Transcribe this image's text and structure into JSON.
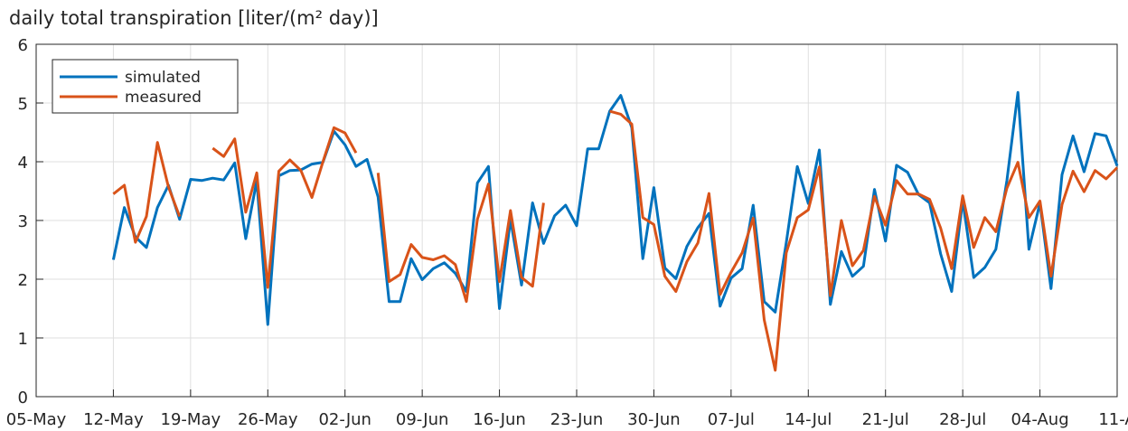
{
  "chart_data": {
    "type": "line",
    "title": "daily total transpiration [liter/(m² day)]",
    "xlabel": "",
    "ylabel": "",
    "ylim": [
      0,
      6
    ],
    "yticks": [
      "0",
      "1",
      "2",
      "3",
      "4",
      "5",
      "6"
    ],
    "xlim": [
      "2019-05-05",
      "2019-08-11"
    ],
    "xticks": [
      {
        "date": "2019-05-05",
        "label": "05-May"
      },
      {
        "date": "2019-05-12",
        "label": "12-May"
      },
      {
        "date": "2019-05-19",
        "label": "19-May"
      },
      {
        "date": "2019-05-26",
        "label": "26-May"
      },
      {
        "date": "2019-06-02",
        "label": "02-Jun"
      },
      {
        "date": "2019-06-09",
        "label": "09-Jun"
      },
      {
        "date": "2019-06-16",
        "label": "16-Jun"
      },
      {
        "date": "2019-06-23",
        "label": "23-Jun"
      },
      {
        "date": "2019-06-30",
        "label": "30-Jun"
      },
      {
        "date": "2019-07-07",
        "label": "07-Jul"
      },
      {
        "date": "2019-07-14",
        "label": "14-Jul"
      },
      {
        "date": "2019-07-21",
        "label": "21-Jul"
      },
      {
        "date": "2019-07-28",
        "label": "28-Jul"
      },
      {
        "date": "2019-08-04",
        "label": "04-Aug"
      },
      {
        "date": "2019-08-11",
        "label": "11-A"
      }
    ],
    "grid": true,
    "legend_position": "top-left",
    "series": [
      {
        "name": "simulated",
        "color": "#0072BD",
        "points": [
          [
            "2019-05-12",
            2.33
          ],
          [
            "2019-05-13",
            3.22
          ],
          [
            "2019-05-14",
            2.72
          ],
          [
            "2019-05-15",
            2.54
          ],
          [
            "2019-05-16",
            3.22
          ],
          [
            "2019-05-17",
            3.6
          ],
          [
            "2019-05-18",
            3.02
          ],
          [
            "2019-05-19",
            3.7
          ],
          [
            "2019-05-20",
            3.68
          ],
          [
            "2019-05-21",
            3.72
          ],
          [
            "2019-05-22",
            3.69
          ],
          [
            "2019-05-23",
            3.98
          ],
          [
            "2019-05-24",
            2.69
          ],
          [
            "2019-05-25",
            3.68
          ],
          [
            "2019-05-26",
            1.23
          ],
          [
            "2019-05-27",
            3.76
          ],
          [
            "2019-05-28",
            3.85
          ],
          [
            "2019-05-29",
            3.86
          ],
          [
            "2019-05-30",
            3.96
          ],
          [
            "2019-05-31",
            3.99
          ],
          [
            "2019-06-01",
            4.52
          ],
          [
            "2019-06-02",
            4.29
          ],
          [
            "2019-06-03",
            3.92
          ],
          [
            "2019-06-04",
            4.04
          ],
          [
            "2019-06-05",
            3.4
          ],
          [
            "2019-06-06",
            1.62
          ],
          [
            "2019-06-07",
            1.62
          ],
          [
            "2019-06-08",
            2.35
          ],
          [
            "2019-06-09",
            1.99
          ],
          [
            "2019-06-10",
            2.18
          ],
          [
            "2019-06-11",
            2.28
          ],
          [
            "2019-06-12",
            2.1
          ],
          [
            "2019-06-13",
            1.79
          ],
          [
            "2019-06-14",
            3.64
          ],
          [
            "2019-06-15",
            3.92
          ],
          [
            "2019-06-16",
            1.5
          ],
          [
            "2019-06-17",
            3.02
          ],
          [
            "2019-06-18",
            1.9
          ],
          [
            "2019-06-19",
            3.3
          ],
          [
            "2019-06-20",
            2.61
          ],
          [
            "2019-06-21",
            3.08
          ],
          [
            "2019-06-22",
            3.26
          ],
          [
            "2019-06-23",
            2.91
          ],
          [
            "2019-06-24",
            4.22
          ],
          [
            "2019-06-25",
            4.22
          ],
          [
            "2019-06-26",
            4.86
          ],
          [
            "2019-06-27",
            5.13
          ],
          [
            "2019-06-28",
            4.58
          ],
          [
            "2019-06-29",
            2.35
          ],
          [
            "2019-06-30",
            3.56
          ],
          [
            "2019-07-01",
            2.19
          ],
          [
            "2019-07-02",
            2.01
          ],
          [
            "2019-07-03",
            2.56
          ],
          [
            "2019-07-04",
            2.88
          ],
          [
            "2019-07-05",
            3.12
          ],
          [
            "2019-07-06",
            1.54
          ],
          [
            "2019-07-07",
            2.02
          ],
          [
            "2019-07-08",
            2.18
          ],
          [
            "2019-07-09",
            3.26
          ],
          [
            "2019-07-10",
            1.62
          ],
          [
            "2019-07-11",
            1.44
          ],
          [
            "2019-07-12",
            2.62
          ],
          [
            "2019-07-13",
            3.92
          ],
          [
            "2019-07-14",
            3.29
          ],
          [
            "2019-07-15",
            4.2
          ],
          [
            "2019-07-16",
            1.57
          ],
          [
            "2019-07-17",
            2.47
          ],
          [
            "2019-07-18",
            2.05
          ],
          [
            "2019-07-19",
            2.22
          ],
          [
            "2019-07-20",
            3.53
          ],
          [
            "2019-07-21",
            2.65
          ],
          [
            "2019-07-22",
            3.94
          ],
          [
            "2019-07-23",
            3.82
          ],
          [
            "2019-07-24",
            3.44
          ],
          [
            "2019-07-25",
            3.3
          ],
          [
            "2019-07-26",
            2.43
          ],
          [
            "2019-07-27",
            1.79
          ],
          [
            "2019-07-28",
            3.35
          ],
          [
            "2019-07-29",
            2.03
          ],
          [
            "2019-07-30",
            2.2
          ],
          [
            "2019-07-31",
            2.51
          ],
          [
            "2019-08-01",
            3.68
          ],
          [
            "2019-08-02",
            5.18
          ],
          [
            "2019-08-03",
            2.51
          ],
          [
            "2019-08-04",
            3.3
          ],
          [
            "2019-08-05",
            1.84
          ],
          [
            "2019-08-06",
            3.78
          ],
          [
            "2019-08-07",
            4.44
          ],
          [
            "2019-08-08",
            3.83
          ],
          [
            "2019-08-09",
            4.48
          ],
          [
            "2019-08-10",
            4.44
          ],
          [
            "2019-08-11",
            3.93
          ]
        ]
      },
      {
        "name": "measured",
        "color": "#D95319",
        "segments": [
          [
            [
              "2019-05-12",
              3.45
            ],
            [
              "2019-05-13",
              3.6
            ],
            [
              "2019-05-14",
              2.63
            ],
            [
              "2019-05-15",
              3.07
            ],
            [
              "2019-05-16",
              4.33
            ],
            [
              "2019-05-17",
              3.57
            ],
            [
              "2019-05-18",
              3.07
            ]
          ],
          [
            [
              "2019-05-21",
              4.23
            ],
            [
              "2019-05-22",
              4.09
            ],
            [
              "2019-05-23",
              4.39
            ],
            [
              "2019-05-24",
              3.14
            ],
            [
              "2019-05-25",
              3.81
            ],
            [
              "2019-05-26",
              1.86
            ],
            [
              "2019-05-27",
              3.84
            ],
            [
              "2019-05-28",
              4.03
            ],
            [
              "2019-05-29",
              3.85
            ],
            [
              "2019-05-30",
              3.39
            ],
            [
              "2019-05-31",
              4.0
            ],
            [
              "2019-06-01",
              4.58
            ],
            [
              "2019-06-02",
              4.49
            ],
            [
              "2019-06-03",
              4.15
            ]
          ],
          [
            [
              "2019-06-05",
              3.81
            ],
            [
              "2019-06-06",
              1.96
            ],
            [
              "2019-06-07",
              2.08
            ],
            [
              "2019-06-08",
              2.59
            ],
            [
              "2019-06-09",
              2.37
            ],
            [
              "2019-06-10",
              2.33
            ],
            [
              "2019-06-11",
              2.4
            ],
            [
              "2019-06-12",
              2.25
            ],
            [
              "2019-06-13",
              1.62
            ],
            [
              "2019-06-14",
              3.02
            ],
            [
              "2019-06-15",
              3.62
            ],
            [
              "2019-06-16",
              1.96
            ],
            [
              "2019-06-17",
              3.17
            ],
            [
              "2019-06-18",
              2.03
            ],
            [
              "2019-06-19",
              1.88
            ],
            [
              "2019-06-20",
              3.3
            ]
          ],
          [
            [
              "2019-06-26",
              4.86
            ],
            [
              "2019-06-27",
              4.81
            ],
            [
              "2019-06-28",
              4.64
            ],
            [
              "2019-06-29",
              3.05
            ],
            [
              "2019-06-30",
              2.93
            ],
            [
              "2019-07-01",
              2.05
            ],
            [
              "2019-07-02",
              1.79
            ],
            [
              "2019-07-03",
              2.3
            ],
            [
              "2019-07-04",
              2.62
            ],
            [
              "2019-07-05",
              3.46
            ],
            [
              "2019-07-06",
              1.74
            ],
            [
              "2019-07-07",
              2.12
            ],
            [
              "2019-07-08",
              2.45
            ],
            [
              "2019-07-09",
              3.04
            ],
            [
              "2019-07-10",
              1.31
            ],
            [
              "2019-07-11",
              0.45
            ],
            [
              "2019-07-12",
              2.45
            ],
            [
              "2019-07-13",
              3.05
            ],
            [
              "2019-07-14",
              3.18
            ],
            [
              "2019-07-15",
              3.91
            ],
            [
              "2019-07-16",
              1.72
            ],
            [
              "2019-07-17",
              3.0
            ],
            [
              "2019-07-18",
              2.23
            ],
            [
              "2019-07-19",
              2.49
            ],
            [
              "2019-07-20",
              3.41
            ],
            [
              "2019-07-21",
              2.92
            ],
            [
              "2019-07-22",
              3.68
            ],
            [
              "2019-07-23",
              3.45
            ],
            [
              "2019-07-24",
              3.45
            ],
            [
              "2019-07-25",
              3.36
            ],
            [
              "2019-07-26",
              2.87
            ],
            [
              "2019-07-27",
              2.18
            ],
            [
              "2019-07-28",
              3.42
            ],
            [
              "2019-07-29",
              2.54
            ],
            [
              "2019-07-30",
              3.05
            ],
            [
              "2019-07-31",
              2.81
            ],
            [
              "2019-08-01",
              3.55
            ],
            [
              "2019-08-02",
              3.99
            ],
            [
              "2019-08-03",
              3.05
            ],
            [
              "2019-08-04",
              3.33
            ],
            [
              "2019-08-05",
              2.05
            ],
            [
              "2019-08-06",
              3.27
            ],
            [
              "2019-08-07",
              3.84
            ],
            [
              "2019-08-08",
              3.49
            ],
            [
              "2019-08-09",
              3.85
            ],
            [
              "2019-08-10",
              3.71
            ],
            [
              "2019-08-11",
              3.9
            ]
          ]
        ]
      }
    ]
  }
}
